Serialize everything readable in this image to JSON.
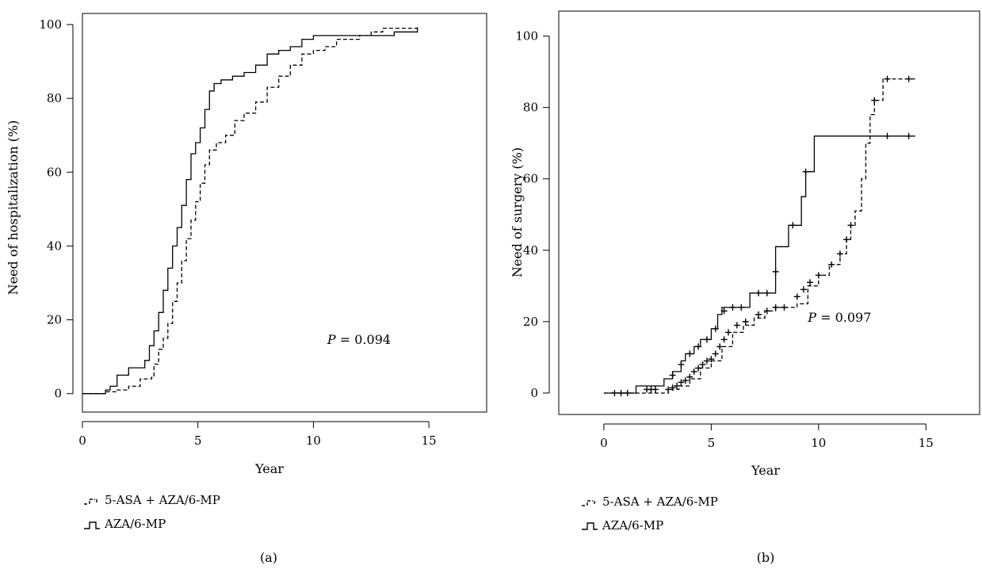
{
  "chart_data": [
    {
      "panel": "(a)",
      "type": "line",
      "subtype": "step",
      "xlabel": "Year",
      "ylabel": "Need of hospitalization (%)",
      "xlim": [
        0,
        17.5
      ],
      "ylim": [
        -5,
        103
      ],
      "xticks": [
        "0",
        "5",
        "10",
        "15"
      ],
      "yticks": [
        "0",
        "20",
        "40",
        "60",
        "80",
        "100"
      ],
      "annotation": {
        "p_label": "P",
        "p_value": " = 0.094",
        "x": 10.6,
        "y": 13.5
      },
      "legend_position": "below",
      "series": [
        {
          "name": "5-ASA + AZA/6-MP",
          "style": "dashed",
          "points": [
            [
              0,
              0
            ],
            [
              0.8,
              0
            ],
            [
              1,
              0.5
            ],
            [
              1.5,
              1
            ],
            [
              2,
              2
            ],
            [
              2.5,
              4
            ],
            [
              3,
              4.5
            ],
            [
              3.1,
              8
            ],
            [
              3.3,
              12
            ],
            [
              3.5,
              15
            ],
            [
              3.7,
              19
            ],
            [
              3.9,
              25
            ],
            [
              4.1,
              30
            ],
            [
              4.3,
              36
            ],
            [
              4.5,
              42
            ],
            [
              4.7,
              47
            ],
            [
              4.9,
              52
            ],
            [
              5.1,
              57
            ],
            [
              5.3,
              62
            ],
            [
              5.5,
              66
            ],
            [
              5.8,
              68
            ],
            [
              6.2,
              70
            ],
            [
              6.6,
              74
            ],
            [
              7,
              76
            ],
            [
              7.5,
              79
            ],
            [
              8,
              83
            ],
            [
              8.5,
              86
            ],
            [
              9,
              89
            ],
            [
              9.5,
              92
            ],
            [
              10,
              93
            ],
            [
              10.5,
              94
            ],
            [
              11,
              96
            ],
            [
              12,
              97
            ],
            [
              12.5,
              98
            ],
            [
              13,
              99
            ],
            [
              14.5,
              99.5
            ]
          ]
        },
        {
          "name": "AZA/6-MP",
          "style": "solid",
          "points": [
            [
              0,
              0
            ],
            [
              0.9,
              0
            ],
            [
              1,
              1
            ],
            [
              1.2,
              2
            ],
            [
              1.5,
              5
            ],
            [
              2,
              7
            ],
            [
              2.7,
              9
            ],
            [
              2.9,
              13
            ],
            [
              3.1,
              17
            ],
            [
              3.3,
              22
            ],
            [
              3.5,
              28
            ],
            [
              3.7,
              34
            ],
            [
              3.9,
              40
            ],
            [
              4.1,
              45
            ],
            [
              4.3,
              51
            ],
            [
              4.5,
              58
            ],
            [
              4.7,
              65
            ],
            [
              4.9,
              68
            ],
            [
              5.1,
              72
            ],
            [
              5.3,
              77
            ],
            [
              5.5,
              82
            ],
            [
              5.7,
              84
            ],
            [
              6,
              85
            ],
            [
              6.5,
              86
            ],
            [
              7,
              87
            ],
            [
              7.5,
              89
            ],
            [
              8,
              92
            ],
            [
              8.5,
              93
            ],
            [
              9,
              94
            ],
            [
              9.5,
              96
            ],
            [
              10,
              97
            ],
            [
              13,
              97
            ],
            [
              13.5,
              98
            ],
            [
              14.5,
              99
            ]
          ]
        }
      ],
      "caption": "(a)"
    },
    {
      "panel": "(b)",
      "type": "line",
      "subtype": "step",
      "xlabel": "Year",
      "ylabel": "Need of surgery (%)",
      "xlim": [
        -2.1,
        17.5
      ],
      "ylim": [
        -6,
        107
      ],
      "xticks": [
        "0",
        "5",
        "10",
        "15"
      ],
      "yticks": [
        "0",
        "20",
        "40",
        "60",
        "80",
        "100"
      ],
      "annotation": {
        "p_label": "P",
        "p_value": " = 0.097",
        "x": 9.5,
        "y": 20
      },
      "legend_position": "below",
      "series": [
        {
          "name": "5-ASA + AZA/6-MP",
          "style": "dashed",
          "points": [
            [
              0,
              0
            ],
            [
              2.8,
              0
            ],
            [
              3,
              1
            ],
            [
              3.5,
              2
            ],
            [
              4,
              4
            ],
            [
              4.5,
              7
            ],
            [
              5,
              9
            ],
            [
              5.5,
              13
            ],
            [
              6,
              17
            ],
            [
              6.5,
              19
            ],
            [
              7,
              21
            ],
            [
              7.5,
              23
            ],
            [
              8,
              24
            ],
            [
              9,
              25
            ],
            [
              9.5,
              30
            ],
            [
              10,
              33
            ],
            [
              10.5,
              36
            ],
            [
              11,
              39
            ],
            [
              11.3,
              43
            ],
            [
              11.5,
              47
            ],
            [
              11.7,
              51
            ],
            [
              12,
              60
            ],
            [
              12.2,
              70
            ],
            [
              12.4,
              78
            ],
            [
              12.6,
              82
            ],
            [
              13,
              88
            ],
            [
              14.5,
              88
            ]
          ],
          "censor_points": [
            [
              3,
              1
            ],
            [
              3.2,
              1.5
            ],
            [
              3.4,
              2
            ],
            [
              3.6,
              3
            ],
            [
              3.8,
              3.5
            ],
            [
              4,
              4.5
            ],
            [
              4.2,
              6
            ],
            [
              4.4,
              7
            ],
            [
              4.6,
              8
            ],
            [
              4.8,
              9
            ],
            [
              5,
              9.5
            ],
            [
              5.2,
              11
            ],
            [
              5.4,
              13
            ],
            [
              5.6,
              15
            ],
            [
              5.8,
              17
            ],
            [
              6.2,
              19
            ],
            [
              6.6,
              20
            ],
            [
              7.2,
              22
            ],
            [
              7.6,
              23
            ],
            [
              8,
              24
            ],
            [
              8.4,
              24
            ],
            [
              9,
              27
            ],
            [
              9.3,
              29
            ],
            [
              9.6,
              31
            ],
            [
              10,
              33
            ],
            [
              10.6,
              36
            ],
            [
              11,
              39
            ],
            [
              11.3,
              43
            ],
            [
              11.5,
              47
            ],
            [
              12.6,
              82
            ],
            [
              13.2,
              88
            ],
            [
              14.2,
              88
            ]
          ]
        },
        {
          "name": "AZA/6-MP",
          "style": "solid",
          "points": [
            [
              0,
              0
            ],
            [
              1.5,
              0
            ],
            [
              1.5,
              2
            ],
            [
              2.5,
              2
            ],
            [
              2.8,
              4
            ],
            [
              3.2,
              6
            ],
            [
              3.6,
              9
            ],
            [
              3.8,
              11
            ],
            [
              4.2,
              13
            ],
            [
              4.5,
              15
            ],
            [
              5,
              18
            ],
            [
              5.3,
              22
            ],
            [
              5.5,
              24
            ],
            [
              6.8,
              24
            ],
            [
              6.8,
              28
            ],
            [
              8,
              28
            ],
            [
              8,
              41
            ],
            [
              8.5,
              41
            ],
            [
              8.6,
              47
            ],
            [
              9,
              47
            ],
            [
              9.2,
              55
            ],
            [
              9.4,
              62
            ],
            [
              9.6,
              62
            ],
            [
              9.8,
              72
            ],
            [
              14.5,
              72
            ]
          ],
          "censor_points": [
            [
              0.5,
              0
            ],
            [
              0.8,
              0
            ],
            [
              1.1,
              0
            ],
            [
              2,
              1
            ],
            [
              2.2,
              1
            ],
            [
              2.4,
              1
            ],
            [
              3.2,
              5
            ],
            [
              3.6,
              8
            ],
            [
              4,
              11
            ],
            [
              4.4,
              13
            ],
            [
              4.8,
              15
            ],
            [
              5.2,
              18
            ],
            [
              5.6,
              23
            ],
            [
              6,
              24
            ],
            [
              6.4,
              24
            ],
            [
              7.2,
              28
            ],
            [
              7.6,
              28
            ],
            [
              8,
              34
            ],
            [
              8.8,
              47
            ],
            [
              9.4,
              62
            ],
            [
              13.2,
              72
            ],
            [
              14.2,
              72
            ]
          ]
        }
      ],
      "caption": "(b)"
    }
  ],
  "legends": [
    {
      "items": [
        "5-ASA + AZA/6-MP",
        "AZA/6-MP"
      ]
    },
    {
      "items": [
        "5-ASA + AZA/6-MP",
        "AZA/6-MP"
      ]
    }
  ]
}
